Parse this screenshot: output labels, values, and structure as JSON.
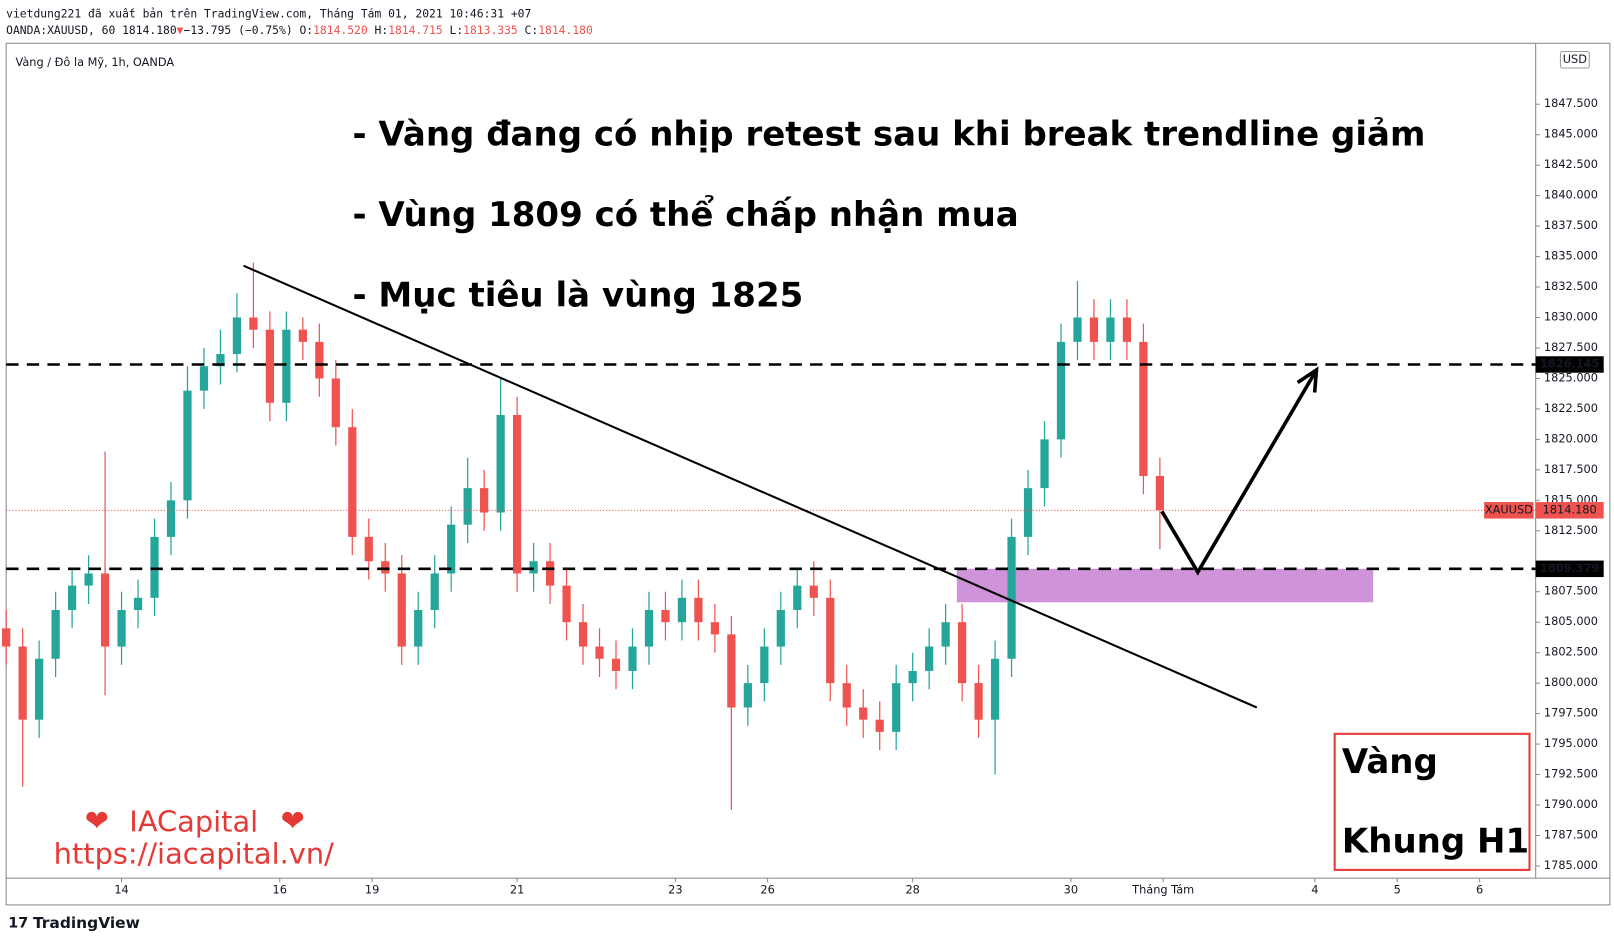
{
  "header": {
    "line1": "vietdung221 đã xuất bản trên TradingView.com, Tháng Tám 01, 2021 10:46:31 +07",
    "symbol": "OANDA:XAUUSD, 60 1814.180",
    "arrow": "▼",
    "change": "−13.795 (−0.75%)",
    "o_label": "O:",
    "o": "1814.520",
    "h_label": "H:",
    "h": "1814.715",
    "l_label": "L:",
    "l": "1813.335",
    "c_label": "C:",
    "c": "1814.180"
  },
  "footer": "TradingView",
  "chart_data": {
    "type": "candlestick",
    "title": "Vàng / Đô la Mỹ, 1h, OANDA",
    "currency": "USD",
    "annotations": [
      "- Vàng đang có nhịp retest sau khi break trendline giảm",
      "- Vùng 1809 có thể chấp nhận mua",
      "- Mục tiêu là vùng 1825"
    ],
    "box": [
      "Vàng",
      "Khung H1"
    ],
    "brand": "IACapital",
    "url": "https://iacapital.vn/",
    "up_color": "#26a69a",
    "down_color": "#ef5350",
    "x": [
      0,
      5,
      10,
      15,
      20,
      25,
      30,
      35,
      40,
      45,
      50,
      55,
      60,
      65,
      70,
      75,
      80,
      85,
      90,
      95,
      100,
      105,
      110,
      115,
      120,
      125,
      130,
      135,
      140,
      145,
      150,
      155,
      160,
      165,
      170,
      175,
      180,
      185,
      190,
      195,
      200,
      205,
      210,
      215,
      220,
      225,
      230,
      235,
      240,
      245,
      250,
      255,
      260,
      265,
      270,
      275,
      280,
      285,
      290,
      295,
      300,
      305,
      310,
      315,
      320,
      325,
      330,
      335,
      340,
      345,
      350
    ],
    "open": [
      1804.5,
      1803,
      1797,
      1802,
      1806,
      1808,
      1809,
      1803,
      1806,
      1807,
      1812,
      1815,
      1824,
      1826,
      1827,
      1830,
      1829,
      1823,
      1829,
      1828,
      1825,
      1821,
      1812,
      1810,
      1809,
      1803,
      1806,
      1809,
      1813,
      1816,
      1814,
      1822,
      1809,
      1810,
      1808,
      1805,
      1803,
      1802,
      1801,
      1803,
      1806,
      1805,
      1807,
      1805,
      1804,
      1798,
      1800,
      1803,
      1806,
      1808,
      1807,
      1800,
      1798,
      1797,
      1796,
      1800,
      1801,
      1803,
      1805,
      1800,
      1797,
      1802,
      1812,
      1816,
      1820,
      1828,
      1830,
      1828,
      1830,
      1828,
      1817
    ],
    "close": [
      1803,
      1797,
      1802,
      1806,
      1808,
      1809,
      1803,
      1806,
      1807,
      1812,
      1815,
      1824,
      1826,
      1827,
      1830,
      1829,
      1823,
      1829,
      1828,
      1825,
      1821,
      1812,
      1810,
      1809,
      1803,
      1806,
      1809,
      1813,
      1816,
      1814,
      1822,
      1809,
      1810,
      1808,
      1805,
      1803,
      1802,
      1801,
      1803,
      1806,
      1805,
      1807,
      1805,
      1804,
      1798,
      1800,
      1803,
      1806,
      1808,
      1807,
      1800,
      1798,
      1797,
      1796,
      1800,
      1801,
      1803,
      1805,
      1800,
      1797,
      1802,
      1812,
      1816,
      1820,
      1828,
      1830,
      1828,
      1830,
      1828,
      1817,
      1814.18
    ],
    "high": [
      1806,
      1804.5,
      1803.5,
      1807.5,
      1809.5,
      1810.5,
      1819,
      1807.5,
      1808.5,
      1813.5,
      1816.5,
      1826,
      1827.5,
      1829,
      1832,
      1834.5,
      1830.5,
      1830.5,
      1830,
      1829.5,
      1826.5,
      1822.5,
      1813.5,
      1811.5,
      1810.5,
      1807.5,
      1810.5,
      1814.5,
      1818.5,
      1817.5,
      1825,
      1823.5,
      1811.5,
      1811.5,
      1809.5,
      1806.5,
      1804.5,
      1803.5,
      1804.5,
      1807.5,
      1807.5,
      1808.5,
      1808.5,
      1806.5,
      1805.5,
      1801.5,
      1804.5,
      1807.5,
      1809.5,
      1810,
      1808.5,
      1801.5,
      1799.5,
      1798.5,
      1801.5,
      1802.5,
      1804.5,
      1806.5,
      1806.5,
      1801.5,
      1803.5,
      1813.5,
      1817.5,
      1821.5,
      1829.5,
      1833,
      1831.5,
      1831.5,
      1831.5,
      1829.5,
      1818.5
    ],
    "low": [
      1801.5,
      1791.5,
      1795.5,
      1800.5,
      1804.5,
      1806.5,
      1799,
      1801.5,
      1804.5,
      1805.5,
      1810.5,
      1813.5,
      1822.5,
      1824.5,
      1825.5,
      1827.5,
      1821.5,
      1821.5,
      1826.5,
      1823.5,
      1819.5,
      1810.5,
      1808.5,
      1807.5,
      1801.5,
      1801.5,
      1804.5,
      1807.5,
      1811.5,
      1812.5,
      1812.5,
      1807.5,
      1807.5,
      1806.5,
      1803.5,
      1801.5,
      1800.5,
      1799.5,
      1799.5,
      1801.5,
      1803.5,
      1803.5,
      1803.5,
      1802.5,
      1789.6,
      1796.5,
      1798.5,
      1801.5,
      1804.5,
      1805.5,
      1798.5,
      1796.5,
      1795.5,
      1794.5,
      1794.5,
      1798.5,
      1799.5,
      1801.5,
      1798.5,
      1795.5,
      1792.5,
      1800.5,
      1810.5,
      1814.5,
      1818.5,
      1826.5,
      1826.5,
      1826.5,
      1826.5,
      1815.5,
      1811
    ],
    "xlim": [
      0,
      464
    ],
    "xticks": [
      {
        "value": 35,
        "label": "14"
      },
      {
        "value": 83,
        "label": "16"
      },
      {
        "value": 111,
        "label": "19"
      },
      {
        "value": 155,
        "label": "21"
      },
      {
        "value": 203,
        "label": "23"
      },
      {
        "value": 231,
        "label": "26"
      },
      {
        "value": 275,
        "label": "28"
      },
      {
        "value": 323,
        "label": "30"
      },
      {
        "value": 351,
        "label": "Tháng Tám"
      },
      {
        "value": 397,
        "label": "4"
      },
      {
        "value": 422,
        "label": "5"
      },
      {
        "value": 447,
        "label": "6"
      }
    ],
    "ylim": [
      1784,
      1852.5
    ],
    "yticks": [
      {
        "value": 1785,
        "label": "1785.000"
      },
      {
        "value": 1787.5,
        "label": "1787.500"
      },
      {
        "value": 1790,
        "label": "1790.000"
      },
      {
        "value": 1792.5,
        "label": "1792.500"
      },
      {
        "value": 1795,
        "label": "1795.000"
      },
      {
        "value": 1797.5,
        "label": "1797.500"
      },
      {
        "value": 1800,
        "label": "1800.000"
      },
      {
        "value": 1802.5,
        "label": "1802.500"
      },
      {
        "value": 1805,
        "label": "1805.000"
      },
      {
        "value": 1807.5,
        "label": "1807.500"
      },
      {
        "value": 1812.5,
        "label": "1812.500"
      },
      {
        "value": 1815,
        "label": "1815.000"
      },
      {
        "value": 1817.5,
        "label": "1817.500"
      },
      {
        "value": 1820,
        "label": "1820.000"
      },
      {
        "value": 1822.5,
        "label": "1822.500"
      },
      {
        "value": 1825,
        "label": "1825.000"
      },
      {
        "value": 1827.5,
        "label": "1827.500"
      },
      {
        "value": 1830,
        "label": "1830.000"
      },
      {
        "value": 1832.5,
        "label": "1832.500"
      },
      {
        "value": 1835,
        "label": "1835.000"
      },
      {
        "value": 1837.5,
        "label": "1837.500"
      },
      {
        "value": 1840,
        "label": "1840.000"
      },
      {
        "value": 1842.5,
        "label": "1842.500"
      },
      {
        "value": 1845,
        "label": "1845.000"
      },
      {
        "value": 1847.5,
        "label": "1847.500"
      }
    ],
    "levels": [
      1826.145,
      1809.379
    ],
    "last_price": {
      "value": 1814.18,
      "label": "1814.180",
      "symbol": "XAUUSD"
    },
    "trendline": {
      "x": [
        72,
        379.4
      ],
      "y": [
        1834.25,
        1798
      ]
    },
    "arrow": {
      "x": [
        350.6,
        361.5,
        397.5
      ],
      "y": [
        1814.1,
        1809.1,
        1825.7
      ]
    },
    "zone": {
      "x": [
        288.4,
        414.7
      ],
      "y": [
        1806.63,
        1809.38
      ],
      "color": "#ce93d8"
    }
  }
}
